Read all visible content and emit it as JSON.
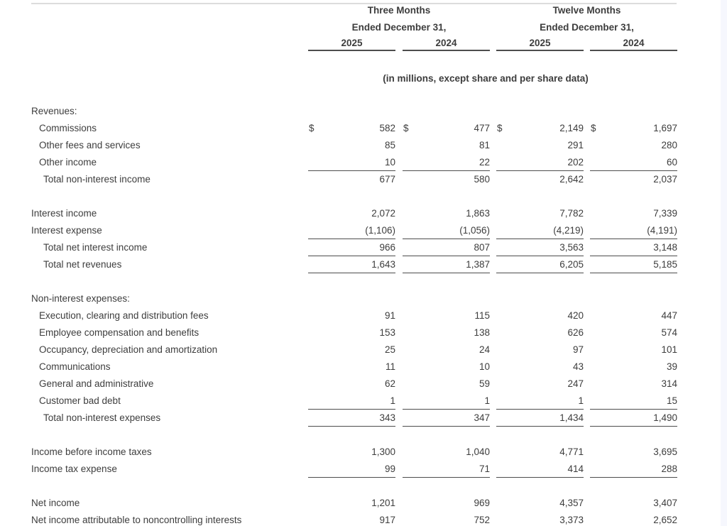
{
  "header": {
    "group1_title": "Three Months",
    "group2_title": "Twelve Months",
    "ended_label": "Ended December 31,",
    "years": [
      "2025",
      "2024",
      "2025",
      "2024"
    ],
    "units_note": "(in millions, except share and per share data)"
  },
  "table": {
    "currency_symbol": "$",
    "column_headers": [
      "Three Months Ended December 31, 2025",
      "Three Months Ended December 31, 2024",
      "Twelve Months Ended December 31, 2025",
      "Twelve Months Ended December 31, 2024"
    ],
    "rows": [
      {
        "label": "Revenues:",
        "indent": 0
      },
      {
        "label": "Commissions",
        "indent": 1,
        "values": [
          "582",
          "477",
          "2,149",
          "1,697"
        ],
        "dollar": true
      },
      {
        "label": "Other fees and services",
        "indent": 1,
        "values": [
          "85",
          "81",
          "291",
          "280"
        ]
      },
      {
        "label": "Other income",
        "indent": 1,
        "values": [
          "10",
          "22",
          "202",
          "60"
        ],
        "underline": true
      },
      {
        "label": "Total non-interest income",
        "indent": 2,
        "values": [
          "677",
          "580",
          "2,642",
          "2,037"
        ]
      },
      {
        "blank": true
      },
      {
        "label": "Interest income",
        "indent": 0,
        "values": [
          "2,072",
          "1,863",
          "7,782",
          "7,339"
        ]
      },
      {
        "label": "Interest expense",
        "indent": 0,
        "values": [
          "(1,106)",
          "(1,056)",
          "(4,219)",
          "(4,191)"
        ],
        "underline": true
      },
      {
        "label": "Total net interest income",
        "indent": 2,
        "values": [
          "966",
          "807",
          "3,563",
          "3,148"
        ],
        "underline": true
      },
      {
        "label": "Total net revenues",
        "indent": 2,
        "values": [
          "1,643",
          "1,387",
          "6,205",
          "5,185"
        ],
        "underline": true
      },
      {
        "blank": true
      },
      {
        "label": "Non-interest expenses:",
        "indent": 0
      },
      {
        "label": "Execution, clearing and distribution fees",
        "indent": 1,
        "values": [
          "91",
          "115",
          "420",
          "447"
        ]
      },
      {
        "label": "Employee compensation and benefits",
        "indent": 1,
        "values": [
          "153",
          "138",
          "626",
          "574"
        ]
      },
      {
        "label": "Occupancy, depreciation and amortization",
        "indent": 1,
        "values": [
          "25",
          "24",
          "97",
          "101"
        ]
      },
      {
        "label": "Communications",
        "indent": 1,
        "values": [
          "11",
          "10",
          "43",
          "39"
        ]
      },
      {
        "label": "General and administrative",
        "indent": 1,
        "values": [
          "62",
          "59",
          "247",
          "314"
        ]
      },
      {
        "label": "Customer bad debt",
        "indent": 1,
        "values": [
          "1",
          "1",
          "1",
          "15"
        ],
        "underline": true
      },
      {
        "label": "Total non-interest expenses",
        "indent": 2,
        "values": [
          "343",
          "347",
          "1,434",
          "1,490"
        ],
        "underline": true
      },
      {
        "blank": true
      },
      {
        "label": "Income before income taxes",
        "indent": 0,
        "values": [
          "1,300",
          "1,040",
          "4,771",
          "3,695"
        ]
      },
      {
        "label": "Income tax expense",
        "indent": 0,
        "values": [
          "99",
          "71",
          "414",
          "288"
        ],
        "underline": true
      },
      {
        "blank": true
      },
      {
        "label": "Net income",
        "indent": 0,
        "values": [
          "1,201",
          "969",
          "4,357",
          "3,407"
        ]
      },
      {
        "label": "Net income attributable to noncontrolling interests",
        "indent": 0,
        "values": [
          "917",
          "752",
          "3,373",
          "2,652"
        ]
      }
    ]
  },
  "colors": {
    "text": "#3d3d3d",
    "rule_dark": "#4d4d4d",
    "rule_light": "#dcdcdc",
    "right_edge": "#f6f7fd"
  }
}
